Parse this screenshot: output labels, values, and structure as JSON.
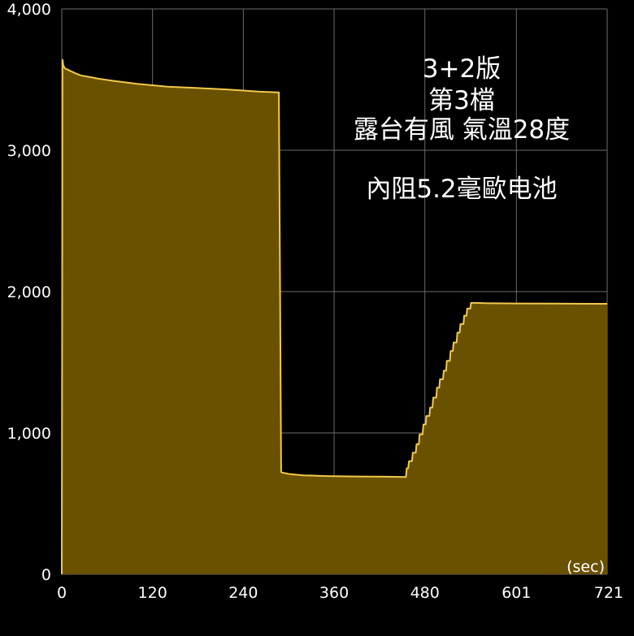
{
  "chart_data": {
    "type": "area",
    "xlabel": "(sec)",
    "ylabel": "",
    "xlim": [
      0,
      721
    ],
    "ylim": [
      0,
      4000
    ],
    "x_ticks": [
      "0",
      "120",
      "240",
      "360",
      "480",
      "601",
      "721"
    ],
    "x_tick_values": [
      0,
      120,
      240,
      360,
      480,
      601,
      721
    ],
    "y_ticks": [
      "0",
      "1,000",
      "2,000",
      "3,000",
      "4,000"
    ],
    "y_tick_values": [
      0,
      1000,
      2000,
      3000,
      4000
    ],
    "grid": true,
    "colors": {
      "line": "#F2C94C",
      "fill": "#6A5100",
      "grid": "#6b6b6b",
      "background": "#000000"
    },
    "annotations": [
      "3+2版",
      "第3檔",
      "露台有風 氣溫28度",
      "內阻5.2毫歐电池"
    ],
    "series": [
      {
        "x": [
          0,
          1,
          2,
          4,
          6,
          8,
          12,
          18,
          25,
          35,
          50,
          70,
          100,
          140,
          180,
          220,
          260,
          286,
          287,
          290,
          291,
          300,
          320,
          350,
          390,
          430,
          455,
          456,
          458,
          459,
          463,
          464,
          468,
          469,
          472,
          473,
          477,
          478,
          481,
          482,
          486,
          487,
          490,
          491,
          495,
          496,
          499,
          500,
          504,
          505,
          508,
          509,
          513,
          514,
          517,
          518,
          522,
          523,
          526,
          527,
          531,
          532,
          535,
          536,
          540,
          541,
          545,
          546,
          560,
          600,
          650,
          700,
          721
        ],
        "y": [
          0,
          3640,
          3600,
          3580,
          3575,
          3570,
          3560,
          3545,
          3530,
          3520,
          3505,
          3490,
          3470,
          3450,
          3440,
          3430,
          3415,
          3410,
          3410,
          725,
          720,
          710,
          700,
          695,
          692,
          690,
          688,
          750,
          750,
          800,
          800,
          860,
          860,
          920,
          920,
          990,
          990,
          1060,
          1060,
          1120,
          1120,
          1180,
          1180,
          1250,
          1250,
          1320,
          1320,
          1380,
          1380,
          1440,
          1440,
          1510,
          1510,
          1580,
          1580,
          1640,
          1640,
          1710,
          1710,
          1770,
          1770,
          1830,
          1830,
          1880,
          1880,
          1920,
          1920,
          1920,
          1918,
          1916,
          1915,
          1914,
          1914
        ]
      }
    ]
  }
}
